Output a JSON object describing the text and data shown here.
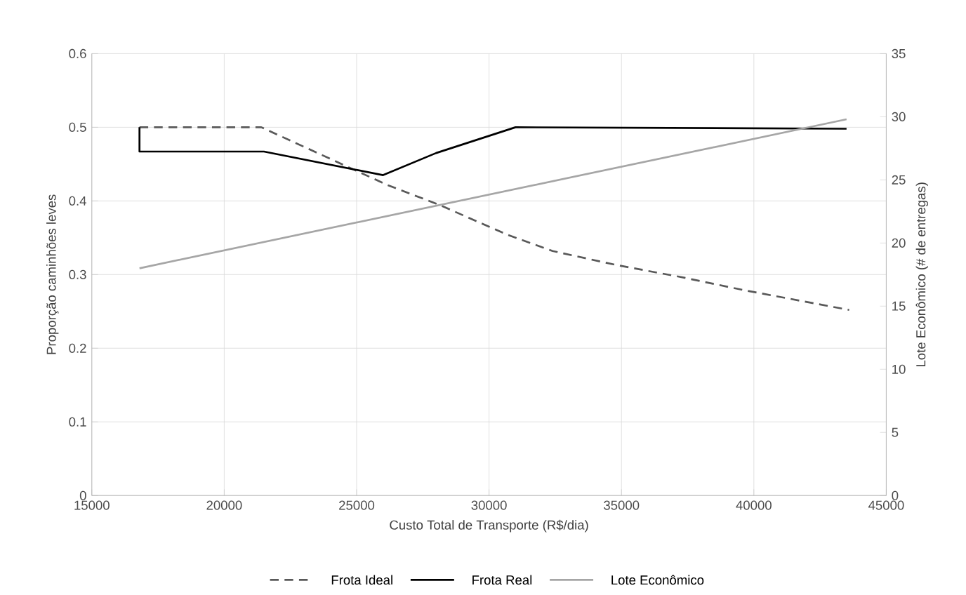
{
  "chart_data": {
    "type": "line",
    "xlabel": "Custo Total de Transporte (R$/dia)",
    "ylabel": "Proporção caminhões leves",
    "y2label": "Lote Econômico (# de entregas)",
    "xlim": [
      15000,
      45000
    ],
    "xticks": [
      15000,
      20000,
      25000,
      30000,
      35000,
      40000,
      45000
    ],
    "ylim": [
      0,
      0.6
    ],
    "yticks": [
      0,
      0.1,
      0.2,
      0.3,
      0.4,
      0.5,
      0.6
    ],
    "y2lim": [
      0,
      35
    ],
    "y2ticks": [
      0,
      5,
      10,
      15,
      20,
      25,
      30,
      35
    ],
    "grid": true,
    "legend": "bottom",
    "marker": "none",
    "series": [
      {
        "name": "Frota Ideal",
        "color": "#595959",
        "line_style": "dashed",
        "x": [
          16800,
          21400,
          26200,
          28100,
          30700,
          32400,
          34800,
          37200,
          39600,
          43600
        ],
        "values": [
          0.5,
          0.5,
          0.421,
          0.395,
          0.354,
          0.332,
          0.313,
          0.297,
          0.279,
          0.252
        ]
      },
      {
        "name": "Frota Real",
        "color": "#000000",
        "line_style": "solid",
        "x": [
          16800,
          16800,
          21500,
          26000,
          28000,
          31000,
          43500
        ],
        "values": [
          0.5,
          0.467,
          0.467,
          0.435,
          0.465,
          0.5,
          0.498
        ]
      },
      {
        "name": "Lote Econômico",
        "color": "#a6a6a6",
        "line_style": "solid",
        "axis": "y2",
        "x": [
          16800,
          43500
        ],
        "values": [
          18,
          29.8
        ]
      }
    ]
  }
}
